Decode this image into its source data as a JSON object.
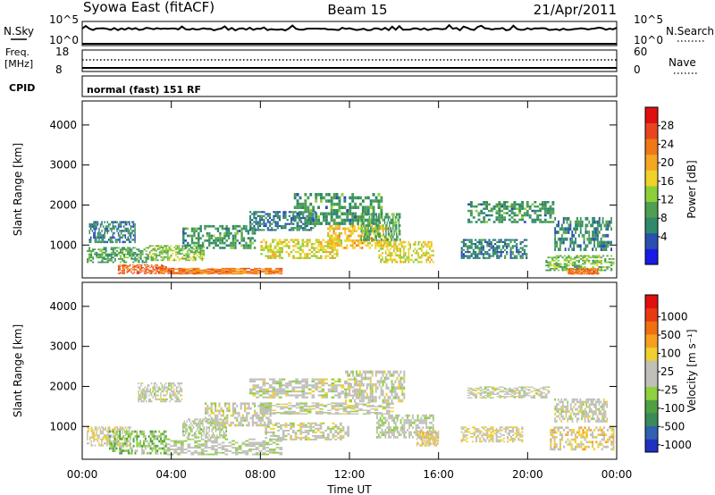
{
  "header": {
    "station": "Syowa East (fitACF)",
    "beam": "Beam 15",
    "date": "21/Apr/2011"
  },
  "noise_panel": {
    "left_label": "N.Sky",
    "right_label": "N.Search",
    "top_tick": "10^5",
    "bottom_tick": "10^0",
    "right_top_tick": "10^5",
    "right_bottom_tick": "10^0"
  },
  "freq_panel": {
    "left_label_1": "Freq.",
    "left_label_2": "[MHz]",
    "left_top_tick": "18",
    "left_bottom_tick": "8",
    "right_label": "Nave",
    "right_top_tick": "60",
    "right_bottom_tick": "0"
  },
  "cpid_panel": {
    "label": "CPID",
    "text": "normal (fast) 151 RF"
  },
  "power_colorbar": {
    "label": "Power [dB]",
    "ticks": [
      "4",
      "8",
      "12",
      "16",
      "20",
      "24",
      "28"
    ],
    "colors": [
      "#1a1ae6",
      "#2a4fb0",
      "#2e8a6a",
      "#4f9e52",
      "#8ccf3a",
      "#f0d228",
      "#f5a623",
      "#f07818",
      "#e8451e",
      "#e01010"
    ]
  },
  "velocity_colorbar": {
    "label": "Velocity [m s⁻¹]",
    "ticks": [
      "1000",
      "500",
      "100",
      "25",
      "-25",
      "-100",
      "-500",
      "-1000"
    ],
    "colors": [
      "#2030c0",
      "#3060b0",
      "#3a8a5a",
      "#4fa040",
      "#8ed040",
      "#c0c0b8",
      "#c0c0b8",
      "#f0d030",
      "#f5a020",
      "#f07010",
      "#e83a10",
      "#e01010"
    ]
  },
  "chart_data": [
    {
      "type": "heatmap",
      "title": "Power",
      "ylabel": "Slant Range [km]",
      "xlabel": "Time UT",
      "x_ticks": [
        "00:00",
        "04:00",
        "08:00",
        "12:00",
        "16:00",
        "20:00",
        "00:00"
      ],
      "y_ticks": [
        "1000",
        "2000",
        "3000",
        "4000"
      ],
      "xlim": [
        0,
        24
      ],
      "ylim": [
        180,
        4600
      ],
      "zlim": [
        0,
        30
      ],
      "regions": [
        {
          "t": [
            0.2,
            3.0
          ],
          "r": [
            550,
            950
          ],
          "z": 10
        },
        {
          "t": [
            0.3,
            2.4
          ],
          "r": [
            1050,
            1600
          ],
          "z": 7
        },
        {
          "t": [
            1.6,
            3.8
          ],
          "r": [
            280,
            520
          ],
          "z": 24
        },
        {
          "t": [
            3.0,
            5.5
          ],
          "r": [
            600,
            1000
          ],
          "z": 13
        },
        {
          "t": [
            3.5,
            9.0
          ],
          "r": [
            280,
            430
          ],
          "z": 22
        },
        {
          "t": [
            4.5,
            7.8
          ],
          "r": [
            900,
            1500
          ],
          "z": 9
        },
        {
          "t": [
            7.5,
            10.5
          ],
          "r": [
            1350,
            1850
          ],
          "z": 7
        },
        {
          "t": [
            8.0,
            11.5
          ],
          "r": [
            650,
            1150
          ],
          "z": 16
        },
        {
          "t": [
            9.5,
            13.5
          ],
          "r": [
            1500,
            2300
          ],
          "z": 9
        },
        {
          "t": [
            11.0,
            13.9
          ],
          "r": [
            900,
            1500
          ],
          "z": 18
        },
        {
          "t": [
            12.5,
            14.3
          ],
          "r": [
            1100,
            1800
          ],
          "z": 10
        },
        {
          "t": [
            13.3,
            15.8
          ],
          "r": [
            550,
            1100
          ],
          "z": 16
        },
        {
          "t": [
            17.3,
            21.2
          ],
          "r": [
            1550,
            2100
          ],
          "z": 9
        },
        {
          "t": [
            17.0,
            20.0
          ],
          "r": [
            650,
            1150
          ],
          "z": 7
        },
        {
          "t": [
            20.8,
            23.9
          ],
          "r": [
            350,
            750
          ],
          "z": 12
        },
        {
          "t": [
            21.2,
            23.8
          ],
          "r": [
            850,
            1700
          ],
          "z": 8
        },
        {
          "t": [
            21.8,
            23.2
          ],
          "r": [
            280,
            420
          ],
          "z": 23
        }
      ]
    },
    {
      "type": "heatmap",
      "title": "Velocity",
      "ylabel": "Slant Range [km]",
      "xlabel": "Time UT",
      "x_ticks": [
        "00:00",
        "04:00",
        "08:00",
        "12:00",
        "16:00",
        "20:00",
        "00:00"
      ],
      "y_ticks": [
        "1000",
        "2000",
        "3000",
        "4000"
      ],
      "xlim": [
        0,
        24
      ],
      "ylim": [
        180,
        4600
      ],
      "zlim": [
        -1200,
        1200
      ],
      "regions": [
        {
          "t": [
            0.2,
            2.2
          ],
          "r": [
            500,
            1000
          ],
          "z": 150
        },
        {
          "t": [
            1.2,
            3.8
          ],
          "r": [
            300,
            900
          ],
          "z": -300
        },
        {
          "t": [
            2.5,
            4.5
          ],
          "r": [
            1600,
            2100
          ],
          "z": 0
        },
        {
          "t": [
            3.8,
            9.0
          ],
          "r": [
            280,
            700
          ],
          "z": -60
        },
        {
          "t": [
            4.5,
            6.5
          ],
          "r": [
            700,
            1200
          ],
          "z": -150
        },
        {
          "t": [
            5.5,
            8.5
          ],
          "r": [
            1000,
            1600
          ],
          "z": 0
        },
        {
          "t": [
            7.5,
            12.5
          ],
          "r": [
            1700,
            2200
          ],
          "z": 0
        },
        {
          "t": [
            8.0,
            14.0
          ],
          "r": [
            1300,
            1600
          ],
          "z": 5
        },
        {
          "t": [
            8.2,
            12.0
          ],
          "r": [
            650,
            1100
          ],
          "z": 10
        },
        {
          "t": [
            11.8,
            14.5
          ],
          "r": [
            1600,
            2400
          ],
          "z": 0
        },
        {
          "t": [
            13.2,
            15.8
          ],
          "r": [
            700,
            1300
          ],
          "z": -80
        },
        {
          "t": [
            15.0,
            16.0
          ],
          "r": [
            500,
            900
          ],
          "z": 200
        },
        {
          "t": [
            17.3,
            21.0
          ],
          "r": [
            1700,
            2000
          ],
          "z": 0
        },
        {
          "t": [
            17.0,
            19.8
          ],
          "r": [
            600,
            1000
          ],
          "z": 150
        },
        {
          "t": [
            21.0,
            23.9
          ],
          "r": [
            400,
            1000
          ],
          "z": 220
        },
        {
          "t": [
            21.2,
            23.6
          ],
          "r": [
            1100,
            1700
          ],
          "z": 0
        }
      ]
    }
  ]
}
